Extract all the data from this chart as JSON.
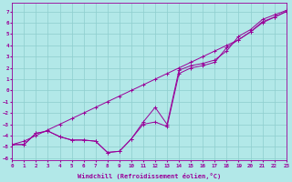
{
  "xlabel": "Windchill (Refroidissement éolien,°C)",
  "background_color": "#b2e8e8",
  "grid_color": "#8ecece",
  "line_color": "#990099",
  "xlim": [
    0,
    23
  ],
  "ylim": [
    -6.2,
    7.8
  ],
  "xticks": [
    0,
    1,
    2,
    3,
    4,
    5,
    6,
    7,
    8,
    9,
    10,
    11,
    12,
    13,
    14,
    15,
    16,
    17,
    18,
    19,
    20,
    21,
    22,
    23
  ],
  "yticks": [
    -6,
    -5,
    -4,
    -3,
    -2,
    -1,
    0,
    1,
    2,
    3,
    4,
    5,
    6,
    7
  ],
  "line1_x": [
    0,
    1,
    2,
    3,
    4,
    5,
    6,
    7,
    8,
    9,
    10,
    11,
    12,
    13,
    14,
    15,
    16,
    17,
    18,
    19,
    20,
    21,
    22,
    23
  ],
  "line1_y": [
    -4.8,
    -4.5,
    -4.0,
    -3.5,
    -3.0,
    -2.5,
    -2.0,
    -1.5,
    -1.0,
    -0.5,
    0.0,
    0.5,
    1.0,
    1.5,
    2.0,
    2.5,
    3.0,
    3.5,
    4.0,
    4.5,
    5.2,
    6.0,
    6.5,
    7.0
  ],
  "line2_x": [
    0,
    1,
    2,
    3,
    4,
    5,
    6,
    7,
    8,
    9,
    10,
    11,
    12,
    13,
    14,
    15,
    16,
    17,
    18,
    19,
    20,
    21,
    22,
    23
  ],
  "line2_y": [
    -4.8,
    -4.8,
    -3.8,
    -3.6,
    -4.1,
    -4.4,
    -4.4,
    -4.5,
    -5.5,
    -5.4,
    -4.3,
    -3.0,
    -2.8,
    -3.2,
    1.5,
    2.0,
    2.2,
    2.5,
    3.8,
    4.5,
    5.2,
    6.1,
    6.5,
    7.0
  ],
  "line3_x": [
    0,
    1,
    2,
    3,
    4,
    5,
    6,
    7,
    8,
    9,
    10,
    11,
    12,
    13,
    14,
    15,
    16,
    17,
    18,
    19,
    20,
    21,
    22,
    23
  ],
  "line3_y": [
    -4.8,
    -4.8,
    -3.8,
    -3.6,
    -4.1,
    -4.4,
    -4.4,
    -4.5,
    -5.5,
    -5.4,
    -4.3,
    -2.8,
    -1.5,
    -3.0,
    1.8,
    2.2,
    2.4,
    2.7,
    3.5,
    4.8,
    5.4,
    6.3,
    6.7,
    7.1
  ]
}
